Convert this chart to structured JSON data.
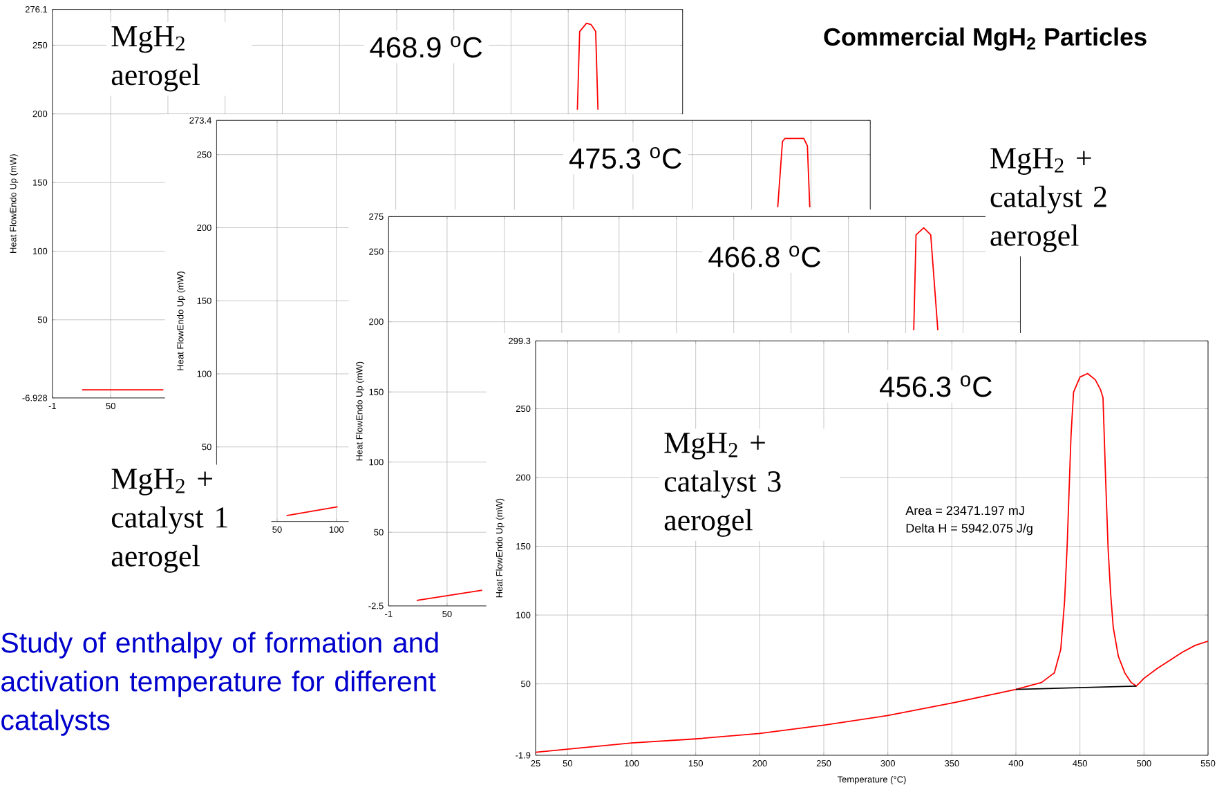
{
  "chart_data": [
    {
      "type": "line",
      "subtitle": "MgH$_{2}$ aerogel",
      "ylabel": "Heat FlowEndo Up (mW)",
      "annotations": [
        "468.9 $^{o}$C"
      ],
      "x": [
        25,
        50,
        96,
        300,
        458,
        460,
        466,
        470,
        474,
        476
      ],
      "series": [
        {
          "color": "#ff0000",
          "values": [
            -1,
            -1,
            -1,
            null,
            203,
            260,
            266,
            265,
            260,
            203
          ]
        }
      ],
      "xlim": [
        -1,
        550
      ],
      "ylim": [
        -6.928,
        276.1
      ],
      "xticks": [
        -1,
        50,
        {
          "value": 100,
          "label": null
        },
        {
          "value": 150,
          "label": null
        },
        {
          "value": 200,
          "label": null
        },
        {
          "value": 250,
          "label": null
        },
        {
          "value": 300,
          "label": null
        },
        {
          "value": 350,
          "label": null
        },
        {
          "value": 400,
          "label": null
        },
        {
          "value": 450,
          "label": null
        },
        {
          "value": 500,
          "label": null
        },
        {
          "value": 550,
          "label": null
        }
      ],
      "yticks": [
        -6.928,
        50,
        100,
        150,
        200,
        250,
        276.1
      ],
      "grid": true
    },
    {
      "type": "line",
      "subtitle": "MgH$_{2}$ + catalyst 1 aerogel",
      "ylabel": "Heat FlowEndo Up (mW)",
      "annotations": [
        "475.3 $^{o}$C"
      ],
      "x": [
        58,
        101,
        300,
        472,
        476,
        478,
        494,
        497,
        499
      ],
      "series": [
        {
          "color": "#ff0000",
          "values": [
            3,
            9,
            null,
            214,
            259,
            261,
            261,
            256,
            214
          ]
        }
      ],
      "xlim": [
        -1,
        550
      ],
      "ylim": [
        -1,
        273.4
      ],
      "xticks": [
        50,
        100,
        {
          "value": 150,
          "label": null
        },
        {
          "value": 200,
          "label": null
        },
        {
          "value": 250,
          "label": null
        },
        {
          "value": 300,
          "label": null
        },
        {
          "value": 350,
          "label": null
        },
        {
          "value": 400,
          "label": null
        },
        {
          "value": 450,
          "label": null
        },
        {
          "value": 500,
          "label": null
        },
        {
          "value": 550,
          "label": null
        }
      ],
      "yticks": [
        50,
        100,
        150,
        200,
        250,
        273.4
      ],
      "grid": true
    },
    {
      "type": "line",
      "title": "Commercial MgH$_{2}$ Particles",
      "subtitle": "MgH$_{2}$ + catalyst 2 aerogel",
      "ylabel": "Heat FlowEndo Up (mW)",
      "annotations": [
        "466.8 $^{o}$C"
      ],
      "x": [
        23.5,
        80.6,
        300,
        457,
        459,
        465.7,
        471.8,
        478
      ],
      "series": [
        {
          "color": "#ff0000",
          "values": [
            1.4,
            8.7,
            null,
            194,
            262,
            267,
            262,
            194
          ]
        }
      ],
      "xlim": [
        -1,
        550
      ],
      "ylim": [
        -2.5,
        275
      ],
      "xticks": [
        -1,
        50,
        {
          "value": 100,
          "label": null
        },
        {
          "value": 150,
          "label": null
        },
        {
          "value": 200,
          "label": null
        },
        {
          "value": 250,
          "label": null
        },
        {
          "value": 300,
          "label": null
        },
        {
          "value": 350,
          "label": null
        },
        {
          "value": 400,
          "label": null
        },
        {
          "value": 450,
          "label": null
        },
        {
          "value": 500,
          "label": null
        },
        {
          "value": 550,
          "label": null
        }
      ],
      "yticks": [
        -2.5,
        50,
        100,
        150,
        200,
        250,
        275
      ],
      "grid": true
    },
    {
      "type": "line",
      "subtitle": "MgH$_{2}$ + catalyst 3 aerogel",
      "xlabel": "Temperature (°C)",
      "ylabel": "Heat FlowEndo Up (mW)",
      "annotations": [
        "456.3 $^{o}$C",
        "Area = 23471.197 mJ",
        "Delta H = 5942.075 J/g",
        "Study of enthalpy of formation and activation temperature for different catalysts"
      ],
      "x": [
        25,
        50,
        100,
        150,
        200,
        250,
        300,
        350,
        400,
        420,
        430,
        435,
        438,
        440,
        443,
        445,
        450,
        456,
        462,
        466,
        468,
        470,
        472,
        474,
        476,
        480,
        485,
        490,
        494,
        500,
        510,
        520,
        530,
        540,
        550
      ],
      "series": [
        {
          "color": "#ff0000",
          "values": [
            0.3,
            2.5,
            7,
            10,
            14,
            20,
            27,
            36,
            46,
            51,
            58,
            75,
            110,
            150,
            230,
            262,
            273,
            275.6,
            271,
            264,
            258,
            200,
            148,
            115,
            91,
            70,
            58,
            51,
            48.4,
            54,
            61,
            67,
            73,
            78,
            81
          ]
        },
        {
          "color": "#000000",
          "x": [
            400,
            494
          ],
          "values": [
            46,
            48.4
          ]
        }
      ],
      "xlim": [
        25,
        550
      ],
      "ylim": [
        -1.9,
        299.3
      ],
      "xticks": [
        25,
        50,
        100,
        150,
        200,
        250,
        300,
        350,
        400,
        450,
        500,
        550
      ],
      "yticks": [
        -1.9,
        50,
        100,
        150,
        200,
        250,
        299.3
      ],
      "grid": true
    }
  ]
}
